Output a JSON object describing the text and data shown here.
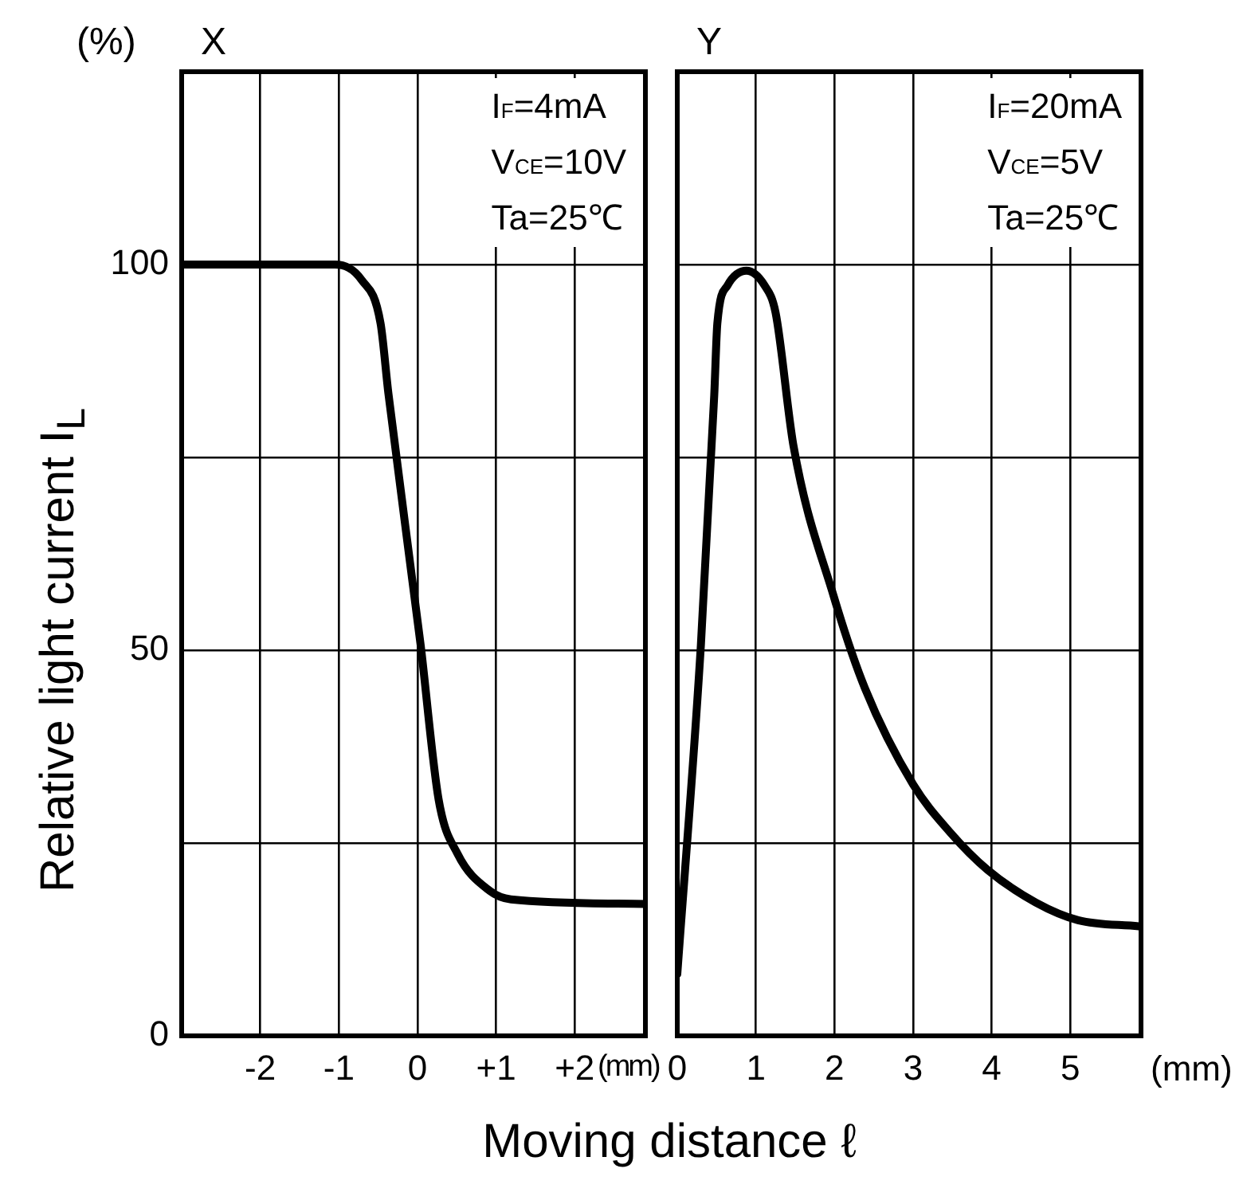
{
  "chart_data": [
    {
      "type": "line",
      "title": "X",
      "ylabel": "Relative light current  I$_{L}$",
      "xlabel": "Moving distance  ℓ",
      "annotations": [
        "(%)",
        "I$_{F}$=4mA",
        "V$_{CE}$=10V",
        "Ta=25℃",
        "(mm)"
      ],
      "series": [
        {
          "color": "#000000",
          "x": [
            -3.0,
            -1.05,
            -0.71,
            -0.47,
            -0.37,
            0.04,
            0.27,
            0.51,
            0.92,
            1.19,
            2.9
          ],
          "values": [
            100,
            100,
            98,
            92.4,
            83.3,
            50.7,
            30.6,
            23.6,
            18.8,
            17.7,
            17.1
          ]
        }
      ],
      "xlim": [
        -3,
        2.9
      ],
      "xticks": [
        {
          "value": -2,
          "label": "-2"
        },
        {
          "value": -1,
          "label": "-1"
        },
        0,
        {
          "value": 1,
          "label": "+1"
        },
        {
          "value": 2,
          "label": "+2"
        }
      ],
      "ylim": [
        0,
        125
      ],
      "yticks": [
        0,
        {
          "value": 25,
          "label": null
        },
        50,
        {
          "value": 75,
          "label": null
        },
        100
      ],
      "grid": true,
      "marker": "none",
      "line_style": "solid"
    },
    {
      "type": "line",
      "title": "Y",
      "annotations": [
        "I$_{F}$=20mA",
        "V$_{CE}$=5V",
        "Ta=25℃",
        "(mm)"
      ],
      "series": [
        {
          "color": "#000000",
          "x": [
            0,
            0.3,
            0.47,
            0.51,
            0.64,
            0.88,
            1.11,
            1.25,
            1.48,
            1.99,
            2.39,
            3.0,
            3.47,
            3.95,
            4.56,
            5.1,
            5.87
          ],
          "values": [
            8,
            50.6,
            83,
            92.4,
            97.3,
            99.2,
            97.3,
            93.8,
            76.4,
            57,
            45,
            32.6,
            26.4,
            21.5,
            17.3,
            15,
            14.2
          ]
        }
      ],
      "xlim": [
        0,
        5.9
      ],
      "xticks": [
        0,
        1,
        2,
        3,
        4,
        5
      ],
      "ylim": [
        0,
        125
      ],
      "yticks": [
        0,
        25,
        50,
        75,
        100
      ],
      "tick_labels": "x",
      "grid": true,
      "marker": "none",
      "line_style": "solid"
    }
  ]
}
